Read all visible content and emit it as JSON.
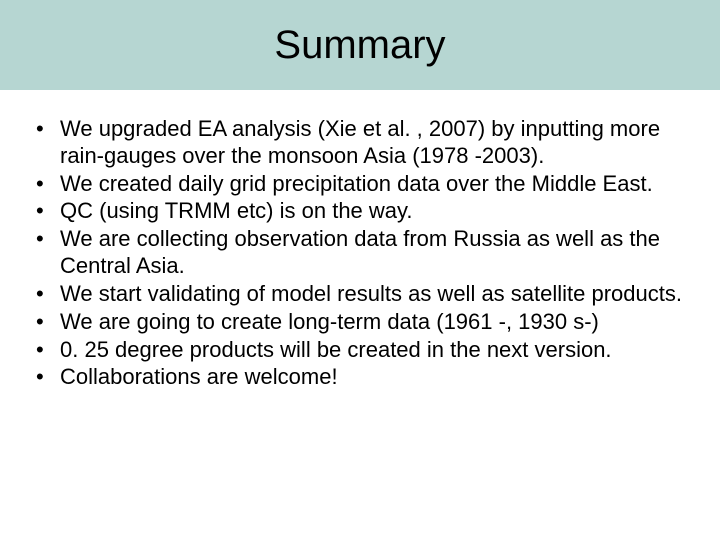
{
  "slide": {
    "title": "Summary",
    "title_bar_color": "#b6d6d2",
    "title_fontsize": 40,
    "title_color": "#000000",
    "background_color": "#ffffff",
    "bullet_fontsize": 22,
    "bullet_color": "#000000",
    "bullets": [
      "We upgraded EA analysis (Xie et al. , 2007) by inputting more rain-gauges over the monsoon Asia (1978 -2003).",
      "We created daily grid precipitation data over the Middle East.",
      "QC (using TRMM etc) is on the way.",
      "We are collecting observation data from Russia as well as the Central Asia.",
      "We start validating of model results as well as satellite products.",
      "We are going to create long-term data (1961 -, 1930 s-)",
      "0. 25 degree products will be created in the next version.",
      "Collaborations are welcome!"
    ]
  }
}
